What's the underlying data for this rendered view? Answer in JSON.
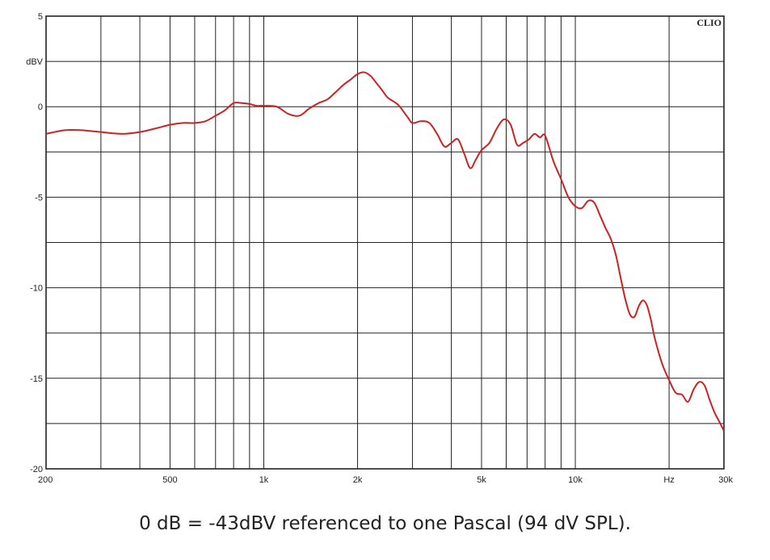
{
  "chart_data": {
    "type": "line",
    "x_scale": "log",
    "xlim": [
      200,
      30000
    ],
    "ylim": [
      -20,
      5
    ],
    "grid": true,
    "brand": "CLIO",
    "y_unit": "dBV",
    "x_unit": "Hz",
    "x_tick_labels": [
      {
        "value": 200,
        "label": "200"
      },
      {
        "value": 500,
        "label": "500"
      },
      {
        "value": 1000,
        "label": "1k"
      },
      {
        "value": 2000,
        "label": "2k"
      },
      {
        "value": 5000,
        "label": "5k"
      },
      {
        "value": 10000,
        "label": "10k"
      },
      {
        "value": 20000,
        "label": "Hz"
      },
      {
        "value": 30000,
        "label": "30k"
      }
    ],
    "y_tick_labels": [
      {
        "value": 5,
        "label": "5"
      },
      {
        "value": 0,
        "label": "0"
      },
      {
        "value": -5,
        "label": "-5"
      },
      {
        "value": -10,
        "label": "-10"
      },
      {
        "value": -15,
        "label": "-15"
      },
      {
        "value": -20,
        "label": "-20"
      }
    ],
    "y_unit_at": 2.5,
    "series": [
      {
        "color": "#cc2222",
        "x": [
          200,
          230,
          260,
          300,
          350,
          400,
          450,
          500,
          550,
          600,
          650,
          700,
          750,
          800,
          850,
          900,
          950,
          1000,
          1100,
          1200,
          1300,
          1400,
          1500,
          1600,
          1700,
          1800,
          1900,
          2000,
          2100,
          2200,
          2300,
          2400,
          2500,
          2700,
          2900,
          3000,
          3200,
          3400,
          3600,
          3800,
          4000,
          4200,
          4400,
          4600,
          4800,
          5000,
          5300,
          5600,
          5900,
          6200,
          6500,
          6800,
          7100,
          7400,
          7700,
          8000,
          8500,
          9000,
          9500,
          10000,
          10500,
          11000,
          11500,
          12000,
          12500,
          13000,
          13500,
          14000,
          14500,
          15000,
          15500,
          16000,
          16500,
          17000,
          17500,
          18000,
          19000,
          20000,
          21000,
          22000,
          23000,
          24000,
          25000,
          26000,
          27000,
          28000,
          29000,
          30000
        ],
        "y": [
          -1.5,
          -1.3,
          -1.3,
          -1.4,
          -1.5,
          -1.4,
          -1.2,
          -1.0,
          -0.9,
          -0.9,
          -0.8,
          -0.5,
          -0.2,
          0.2,
          0.2,
          0.15,
          0.05,
          0.05,
          0.0,
          -0.4,
          -0.5,
          -0.1,
          0.2,
          0.4,
          0.8,
          1.2,
          1.5,
          1.8,
          1.9,
          1.7,
          1.3,
          0.9,
          0.5,
          0.1,
          -0.6,
          -0.9,
          -0.8,
          -0.9,
          -1.5,
          -2.2,
          -2.0,
          -1.8,
          -2.6,
          -3.4,
          -2.9,
          -2.4,
          -2.0,
          -1.2,
          -0.7,
          -1.0,
          -2.1,
          -2.0,
          -1.8,
          -1.5,
          -1.7,
          -1.6,
          -3.0,
          -4.0,
          -5.0,
          -5.5,
          -5.6,
          -5.2,
          -5.3,
          -6.0,
          -6.7,
          -7.3,
          -8.2,
          -9.5,
          -10.7,
          -11.5,
          -11.6,
          -11.0,
          -10.7,
          -11.0,
          -11.8,
          -12.8,
          -14.2,
          -15.1,
          -15.8,
          -15.9,
          -16.3,
          -15.6,
          -15.2,
          -15.4,
          -16.2,
          -16.9,
          -17.4,
          -17.9
        ]
      }
    ]
  },
  "caption": "0 dB = -43dBV referenced to one Pascal (94 dV SPL)."
}
